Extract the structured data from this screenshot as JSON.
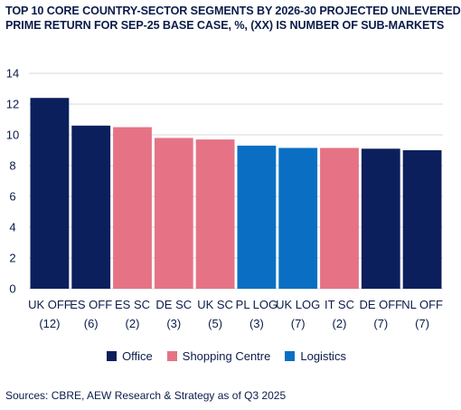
{
  "chart_data": {
    "type": "bar",
    "title_lines": [
      "TOP 10 CORE COUNTRY-SECTOR SEGMENTS BY 2026-30 PROJECTED UNLEVERED",
      "PRIME RETURN FOR SEP-25 BASE CASE, %, (XX) IS NUMBER OF SUB-MARKETS"
    ],
    "categories": [
      {
        "name": "UK OFF",
        "count": "(12)"
      },
      {
        "name": "ES OFF",
        "count": "(6)"
      },
      {
        "name": "ES SC",
        "count": "(2)"
      },
      {
        "name": "DE SC",
        "count": "(3)"
      },
      {
        "name": "UK SC",
        "count": "(5)"
      },
      {
        "name": "PL LOG",
        "count": "(3)"
      },
      {
        "name": "UK LOG",
        "count": "(7)"
      },
      {
        "name": "IT SC",
        "count": "(2)"
      },
      {
        "name": "DE OFF",
        "count": "(7)"
      },
      {
        "name": "NL OFF",
        "count": "(7)"
      }
    ],
    "values": [
      12.4,
      10.6,
      10.5,
      9.8,
      9.7,
      9.3,
      9.15,
      9.15,
      9.1,
      9.0
    ],
    "sectors": [
      "Office",
      "Office",
      "Shopping Centre",
      "Shopping Centre",
      "Shopping Centre",
      "Logistics",
      "Logistics",
      "Shopping Centre",
      "Office",
      "Office"
    ],
    "ylim": [
      0,
      14
    ],
    "yticks": [
      0,
      2,
      4,
      6,
      8,
      10,
      12,
      14
    ],
    "grid": true,
    "legend_position": "bottom",
    "legend": [
      {
        "name": "Office",
        "color": "#0b1f5c"
      },
      {
        "name": "Shopping Centre",
        "color": "#e57385"
      },
      {
        "name": "Logistics",
        "color": "#0a6fc2"
      }
    ]
  },
  "source": "Sources: CBRE, AEW Research & Strategy as of Q3 2025"
}
